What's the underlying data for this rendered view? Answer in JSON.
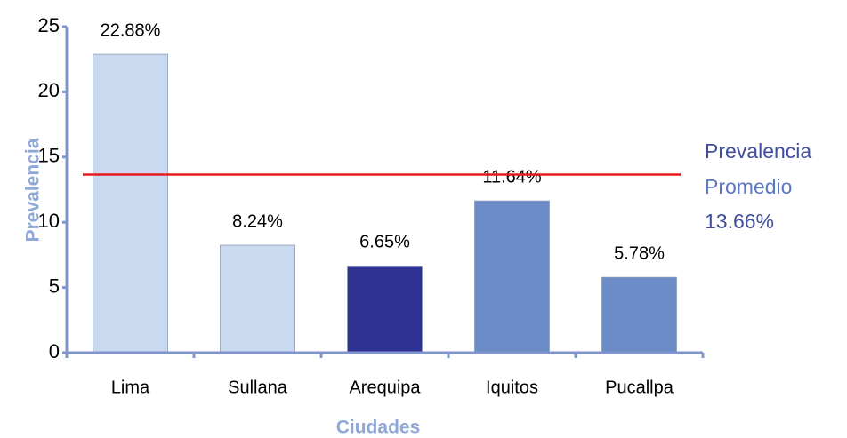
{
  "chart_data": {
    "type": "bar",
    "x_label": "Ciudades",
    "y_label": "Prevalencia",
    "categories": [
      "Lima",
      "Sullana",
      "Arequipa",
      "Iquitos",
      "Pucallpa"
    ],
    "values": [
      22.88,
      8.24,
      6.65,
      11.64,
      5.78
    ],
    "value_labels": [
      "22.88%",
      "8.24%",
      "6.65%",
      "11.64%",
      "5.78%"
    ],
    "colors": [
      "#c9d9ef",
      "#c9d9ef",
      "#2e3192",
      "#6b8cc7",
      "#6b8cc7"
    ],
    "ylim": [
      0,
      25
    ],
    "yticks": [
      0,
      5,
      10,
      15,
      20,
      25
    ],
    "reference_line": {
      "value": 13.66,
      "color": "#e8191c",
      "label_lines": [
        "Prevalencia",
        "Promedio"
      ],
      "value_label": "13.66%"
    }
  }
}
